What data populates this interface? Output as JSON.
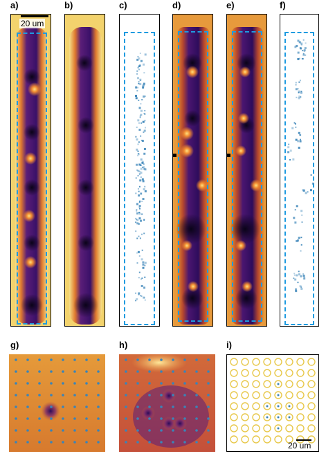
{
  "labels": {
    "a": "a)",
    "b": "b)",
    "c": "c)",
    "d": "d)",
    "e": "e)",
    "f": "f)",
    "g": "g)",
    "h": "h)",
    "i": "i)"
  },
  "scalebars": {
    "top": "20 um",
    "bottom": "20 um"
  },
  "colors": {
    "dash": "#1f9be0",
    "ring": "#e8c84a",
    "dot": "#3a84b8"
  }
}
